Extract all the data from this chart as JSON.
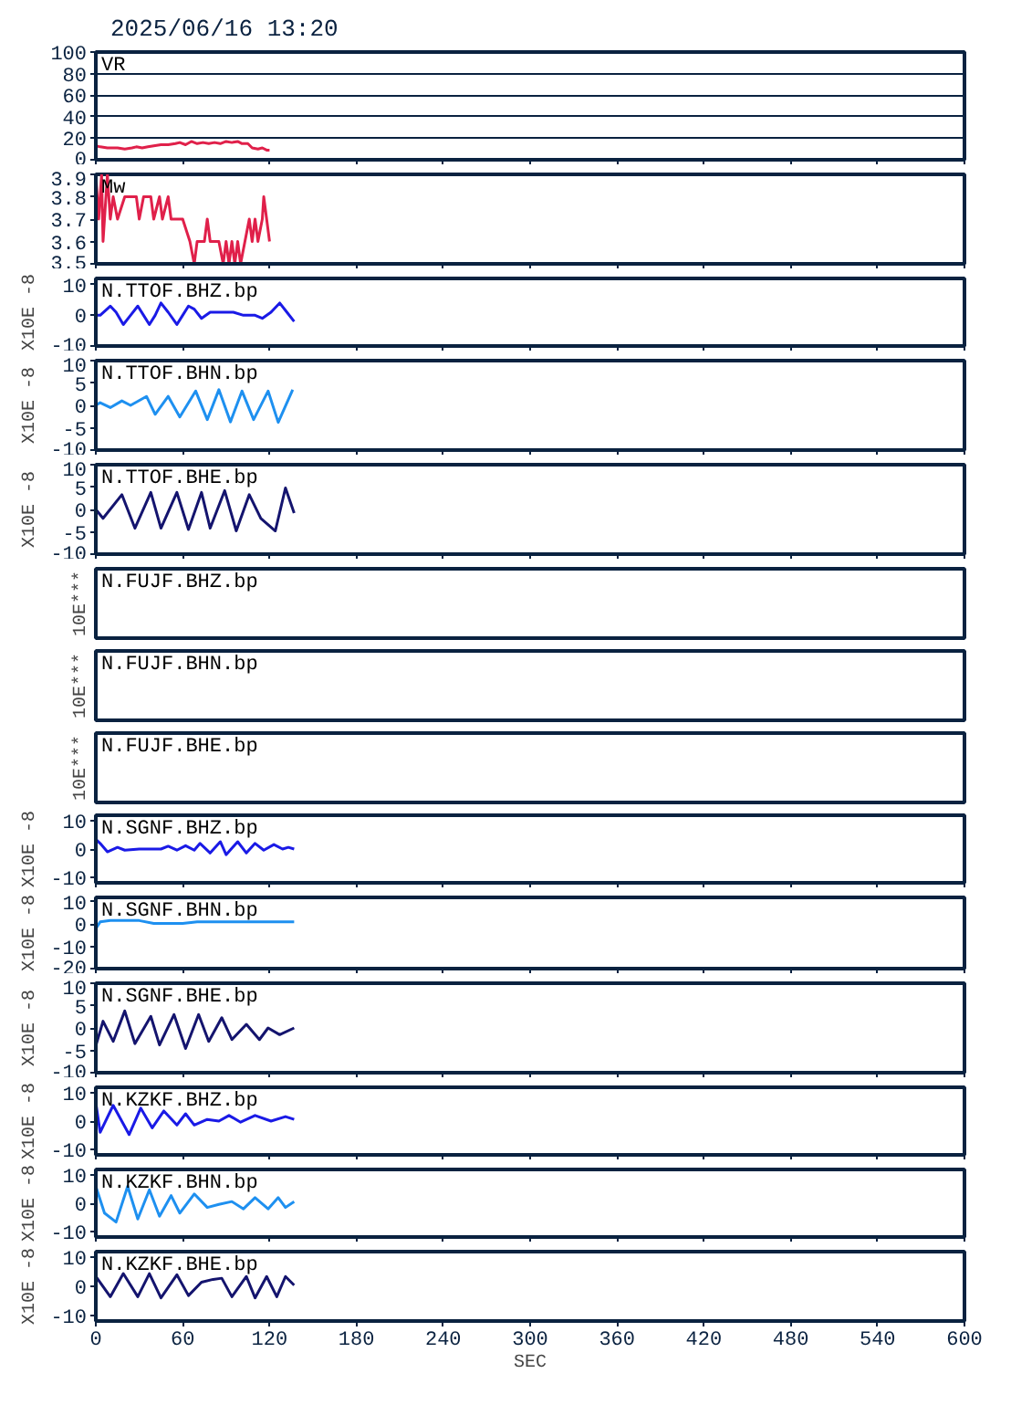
{
  "chart_data": [
    {
      "type": "line",
      "title": "2025/06/16 13:20",
      "annotations": [
        "VR"
      ],
      "xlim": [
        0,
        600
      ],
      "xticks": [
        0,
        60,
        120,
        180,
        240,
        300,
        360,
        420,
        480,
        540,
        600
      ],
      "ylim": [
        0,
        100
      ],
      "yticks": [
        0,
        20,
        40,
        60,
        80,
        100
      ],
      "grid": "y",
      "tick_labels": "y",
      "line_style": "solid",
      "x": [
        0,
        3,
        8,
        15,
        20,
        25,
        28,
        32,
        36,
        40,
        45,
        50,
        55,
        58,
        62,
        66,
        70,
        74,
        78,
        82,
        86,
        90,
        94,
        98,
        101,
        105,
        108,
        112,
        115,
        118,
        120
      ],
      "series": [
        {
          "color": "#e0204a",
          "values": [
            13,
            12,
            11,
            11,
            10,
            11,
            12,
            11,
            12,
            13,
            14,
            14,
            15,
            16,
            14,
            17,
            15,
            16,
            15,
            16,
            15,
            17,
            16,
            17,
            15,
            15,
            11,
            10,
            11,
            9,
            9
          ]
        }
      ]
    },
    {
      "type": "line",
      "annotations": [
        "Mw"
      ],
      "xlim": [
        0,
        600
      ],
      "xticks": [
        0,
        60,
        120,
        180,
        240,
        300,
        360,
        420,
        480,
        540,
        600
      ],
      "ylim": [
        3.5,
        3.9
      ],
      "yticks": [
        3.5,
        3.6,
        3.7,
        3.8,
        3.9
      ],
      "tick_labels": "y",
      "x": [
        0,
        2,
        4,
        5,
        7,
        8,
        10,
        12,
        15,
        20,
        28,
        30,
        33,
        38,
        40,
        44,
        46,
        50,
        52,
        60,
        65,
        68,
        70,
        75,
        77,
        79,
        85,
        88,
        90,
        92,
        94,
        96,
        98,
        100,
        103,
        106,
        108,
        110,
        112,
        115,
        116,
        118,
        120
      ],
      "series": [
        {
          "color": "#e0204a",
          "values": [
            3.9,
            3.7,
            3.9,
            3.6,
            3.8,
            3.9,
            3.7,
            3.8,
            3.7,
            3.8,
            3.8,
            3.7,
            3.8,
            3.8,
            3.7,
            3.8,
            3.7,
            3.8,
            3.7,
            3.7,
            3.6,
            3.5,
            3.6,
            3.6,
            3.7,
            3.6,
            3.6,
            3.5,
            3.6,
            3.5,
            3.6,
            3.5,
            3.6,
            3.5,
            3.6,
            3.7,
            3.6,
            3.7,
            3.6,
            3.7,
            3.8,
            3.7,
            3.6
          ]
        }
      ]
    },
    {
      "type": "line",
      "annotations": [
        "N.TTOF.BHZ.bp"
      ],
      "ylabel": "X10E -8",
      "xlim": [
        0,
        600
      ],
      "xticks": [
        0,
        60,
        120,
        180,
        240,
        300,
        360,
        420,
        480,
        540,
        600
      ],
      "ylim": [
        -10,
        12
      ],
      "yticks": [
        -10,
        0,
        10
      ],
      "tick_labels": "y",
      "x": [
        0,
        3,
        10,
        14,
        19,
        24,
        29,
        33,
        37,
        41,
        45,
        50,
        56,
        60,
        64,
        68,
        73,
        79,
        85,
        95,
        102,
        106,
        110,
        115,
        121,
        127,
        132,
        137
      ],
      "series": [
        {
          "color": "#1a1ae6",
          "values": [
            0,
            0,
            3,
            1,
            -3,
            0,
            3,
            0,
            -3,
            0,
            4,
            1,
            -3,
            0,
            3,
            2,
            -1,
            1,
            1,
            1,
            0,
            0,
            0,
            -1,
            1,
            4,
            1,
            -2
          ]
        }
      ]
    },
    {
      "type": "line",
      "annotations": [
        "N.TTOF.BHN.bp"
      ],
      "ylabel": "X10E -8",
      "xlim": [
        0,
        600
      ],
      "xticks": [
        0,
        60,
        120,
        180,
        240,
        300,
        360,
        420,
        480,
        540,
        600
      ],
      "ylim": [
        -10,
        10
      ],
      "yticks": [
        -10,
        -5,
        0,
        5,
        10
      ],
      "tick_labels": "y",
      "x": [
        0,
        3,
        10,
        18,
        24,
        35,
        41,
        50,
        58,
        69,
        77,
        85,
        93,
        101,
        109,
        119,
        126,
        136
      ],
      "series": [
        {
          "color": "#1e90f0",
          "values": [
            0,
            0.6,
            -0.5,
            1,
            0,
            2,
            -2,
            2,
            -2.6,
            3.2,
            -3.2,
            3.5,
            -3.7,
            3.2,
            -3.2,
            3.2,
            -3.8,
            3.5
          ]
        }
      ]
    },
    {
      "type": "line",
      "annotations": [
        "N.TTOF.BHE.bp"
      ],
      "ylabel": "X10E -8",
      "xlim": [
        0,
        600
      ],
      "xticks": [
        0,
        60,
        120,
        180,
        240,
        300,
        360,
        420,
        480,
        540,
        600
      ],
      "ylim": [
        -10,
        10
      ],
      "yticks": [
        -10,
        -5,
        0,
        5,
        10
      ],
      "tick_labels": "y",
      "x": [
        0,
        5,
        18,
        27,
        38,
        45,
        56,
        64,
        73,
        79,
        89,
        97,
        106,
        114,
        124,
        131,
        137
      ],
      "series": [
        {
          "color": "#14146e",
          "values": [
            0,
            -2,
            3.3,
            -4.2,
            3.8,
            -4.2,
            3.8,
            -4.5,
            3.8,
            -4.2,
            4.2,
            -4.8,
            3.3,
            -2,
            -4.8,
            4.8,
            -0.8
          ]
        }
      ]
    },
    {
      "type": "other",
      "annotations": [
        "N.FUJF.BHZ.bp"
      ],
      "ylabel": "10E***"
    },
    {
      "type": "other",
      "annotations": [
        "N.FUJF.BHN.bp"
      ],
      "ylabel": "10E***"
    },
    {
      "type": "other",
      "annotations": [
        "N.FUJF.BHE.bp"
      ],
      "ylabel": "10E***"
    },
    {
      "type": "line",
      "annotations": [
        "N.SGNF.BHZ.bp"
      ],
      "ylabel": "X10E -8",
      "xlim": [
        0,
        600
      ],
      "xticks": [
        0,
        60,
        120,
        180,
        240,
        300,
        360,
        420,
        480,
        540,
        600
      ],
      "ylim": [
        -12,
        12
      ],
      "yticks": [
        -10,
        0,
        10
      ],
      "tick_labels": "y",
      "x": [
        0,
        3,
        8,
        15,
        20,
        30,
        45,
        50,
        56,
        62,
        68,
        72,
        79,
        86,
        90,
        98,
        104,
        110,
        116,
        123,
        129,
        133,
        137
      ],
      "series": [
        {
          "color": "#1a1ae6",
          "values": [
            3.5,
            2,
            -1,
            0.6,
            -0.4,
            0,
            0,
            1,
            -0.4,
            1.2,
            -0.4,
            2,
            -1.4,
            2.6,
            -2,
            2.6,
            -1.4,
            2,
            -0.4,
            1.6,
            0,
            0.6,
            0
          ]
        }
      ]
    },
    {
      "type": "line",
      "annotations": [
        "N.SGNF.BHN.bp"
      ],
      "ylabel": "X10E -8",
      "xlim": [
        0,
        600
      ],
      "xticks": [
        0,
        60,
        120,
        180,
        240,
        300,
        360,
        420,
        480,
        540,
        600
      ],
      "ylim": [
        -20,
        12
      ],
      "yticks": [
        -20,
        -10,
        0,
        10
      ],
      "tick_labels": "y",
      "x": [
        0,
        3,
        10,
        30,
        40,
        60,
        70,
        137
      ],
      "series": [
        {
          "color": "#1e90f0",
          "values": [
            -2,
            1,
            1.6,
            1.6,
            0.3,
            0.3,
            1,
            1
          ]
        }
      ]
    },
    {
      "type": "line",
      "annotations": [
        "N.SGNF.BHE.bp"
      ],
      "ylabel": "X10E -8",
      "xlim": [
        0,
        600
      ],
      "xticks": [
        0,
        60,
        120,
        180,
        240,
        300,
        360,
        420,
        480,
        540,
        600
      ],
      "ylim": [
        -10,
        10
      ],
      "yticks": [
        -10,
        -5,
        0,
        5,
        10
      ],
      "tick_labels": "y",
      "x": [
        0,
        5,
        12,
        20,
        27,
        38,
        44,
        54,
        62,
        71,
        78,
        87,
        94,
        104,
        113,
        119,
        127,
        137
      ],
      "series": [
        {
          "color": "#14146e",
          "values": [
            -4,
            1.5,
            -3,
            3.8,
            -3.5,
            2.6,
            -3.8,
            3,
            -4.6,
            3,
            -3,
            2.3,
            -2.6,
            0.8,
            -2.6,
            0,
            -1.5,
            0
          ]
        }
      ]
    },
    {
      "type": "line",
      "annotations": [
        "N.KZKF.BHZ.bp"
      ],
      "ylabel": "X10E -8",
      "xlim": [
        0,
        600
      ],
      "xticks": [
        0,
        60,
        120,
        180,
        240,
        300,
        360,
        420,
        480,
        540,
        600
      ],
      "ylim": [
        -12,
        12
      ],
      "yticks": [
        -10,
        0,
        10
      ],
      "tick_labels": "y",
      "x": [
        0,
        3,
        12,
        23,
        31,
        39,
        47,
        56,
        62,
        68,
        77,
        85,
        92,
        100,
        110,
        121,
        131,
        137
      ],
      "series": [
        {
          "color": "#1a1ae6",
          "values": [
            6.6,
            -4,
            5.6,
            -4.8,
            4.6,
            -2.4,
            3.6,
            -1.4,
            2.6,
            -1.4,
            0.6,
            0,
            2,
            -0.4,
            2,
            0,
            1.6,
            0.6
          ]
        }
      ]
    },
    {
      "type": "line",
      "annotations": [
        "N.KZKF.BHN.bp"
      ],
      "ylabel": "X10E -8",
      "xlim": [
        0,
        600
      ],
      "xticks": [
        0,
        60,
        120,
        180,
        240,
        300,
        360,
        420,
        480,
        540,
        600
      ],
      "ylim": [
        -12,
        12
      ],
      "yticks": [
        -10,
        0,
        10
      ],
      "tick_labels": "y",
      "x": [
        0,
        6,
        14,
        22,
        29,
        37,
        44,
        52,
        58,
        68,
        77,
        85,
        94,
        102,
        110,
        119,
        126,
        131,
        137
      ],
      "series": [
        {
          "color": "#1e90f0",
          "values": [
            6,
            -3.5,
            -6.7,
            6,
            -5.6,
            4.8,
            -4.6,
            2.7,
            -3.5,
            3.3,
            -1.5,
            -0.4,
            0.6,
            -2,
            2,
            -2,
            2,
            -1.5,
            0.6
          ]
        }
      ]
    },
    {
      "type": "line",
      "annotations": [
        "N.KZKF.BHE.bp"
      ],
      "ylabel": "X10E -8",
      "xlabel": "SEC",
      "xlim": [
        0,
        600
      ],
      "xticks": [
        0,
        60,
        120,
        180,
        240,
        300,
        360,
        420,
        480,
        540,
        600
      ],
      "ylim": [
        -12,
        12
      ],
      "yticks": [
        -10,
        0,
        10
      ],
      "x": [
        0,
        10,
        19,
        29,
        37,
        45,
        56,
        64,
        73,
        81,
        87,
        94,
        104,
        110,
        118,
        125,
        131,
        137
      ],
      "series": [
        {
          "color": "#14146e",
          "values": [
            3.4,
            -3.6,
            4.4,
            -3.6,
            4.4,
            -4,
            4,
            -3.2,
            1.4,
            2.4,
            2.8,
            -3.6,
            3.4,
            -4,
            3.4,
            -3.6,
            3.4,
            0.4
          ]
        }
      ]
    }
  ]
}
